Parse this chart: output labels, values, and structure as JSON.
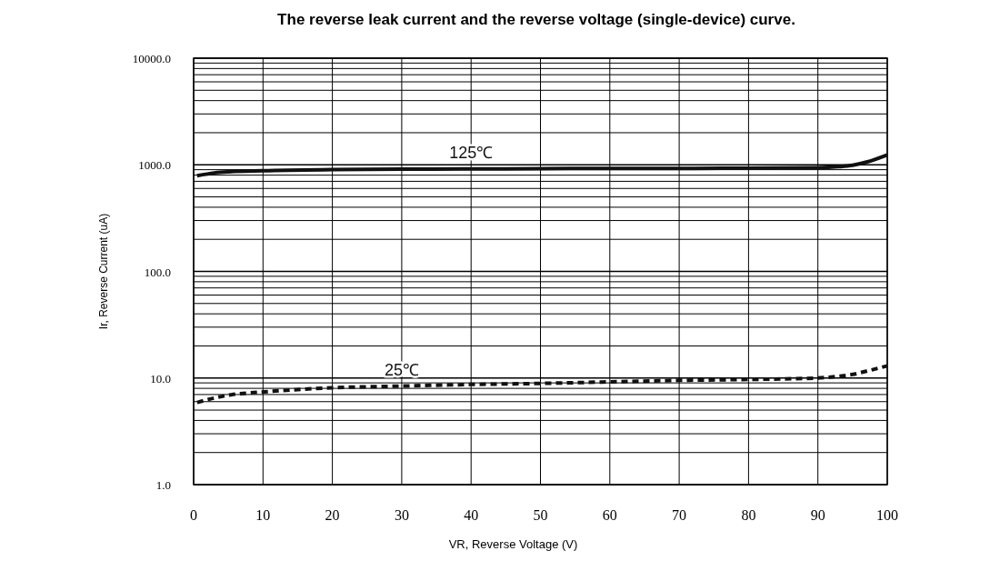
{
  "chart_data": {
    "type": "line",
    "title": "The reverse leak current and the reverse voltage (single-device) curve.",
    "xlabel": "VR, Reverse Voltage (V)",
    "ylabel": "Ir, Reverse Current (uA)",
    "log": "y",
    "grid": true,
    "marker": "none",
    "xlim": [
      0,
      100
    ],
    "xticks": [
      0,
      10,
      20,
      30,
      40,
      50,
      60,
      70,
      80,
      90,
      100
    ],
    "ylim": [
      1,
      10000
    ],
    "yticks": [
      {
        "value": 1,
        "label": "1.0"
      },
      {
        "value": 10,
        "label": "10.0"
      },
      {
        "value": 100,
        "label": "100.0"
      },
      {
        "value": 1000,
        "label": "1000.0"
      },
      {
        "value": 10000,
        "label": "10000.0"
      }
    ],
    "series": [
      {
        "name": "125℃",
        "color": "#111111",
        "line_style": "solid",
        "x": [
          0.5,
          3,
          5,
          10,
          20,
          30,
          40,
          50,
          60,
          70,
          80,
          90,
          93,
          95,
          97,
          100
        ],
        "values": [
          790,
          840,
          860,
          880,
          900,
          910,
          915,
          920,
          925,
          925,
          930,
          940,
          960,
          990,
          1060,
          1240
        ]
      },
      {
        "name": "25℃",
        "color": "#111111",
        "line_style": "dashed",
        "x": [
          0.5,
          3,
          5,
          10,
          15,
          20,
          30,
          40,
          50,
          60,
          70,
          80,
          90,
          93,
          95,
          97,
          100
        ],
        "values": [
          5.9,
          6.5,
          6.9,
          7.4,
          7.8,
          8.1,
          8.4,
          8.7,
          8.9,
          9.2,
          9.5,
          9.7,
          10,
          10.4,
          10.8,
          11.6,
          13
        ]
      }
    ]
  }
}
